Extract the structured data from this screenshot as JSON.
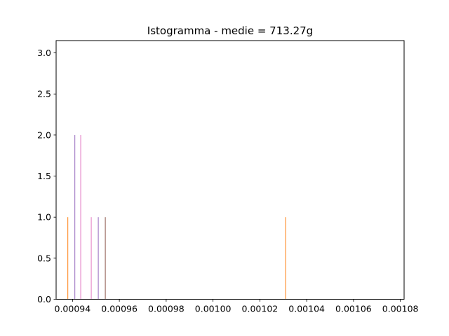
{
  "chart_data": {
    "type": "bar",
    "title": "Istogramma - medie = 713.27g",
    "xlabel": "",
    "ylabel": "",
    "xlim": [
      0.000933,
      0.0010816
    ],
    "ylim": [
      0,
      3.15
    ],
    "x_ticks": [
      0.00094,
      0.00096,
      0.00098,
      0.001,
      0.00102,
      0.00104,
      0.00106,
      0.00108
    ],
    "x_tick_labels": [
      "0.00094",
      "0.00096",
      "0.00098",
      "0.00100",
      "0.00102",
      "0.00104",
      "0.00106",
      "0.00108"
    ],
    "y_ticks": [
      0.0,
      0.5,
      1.0,
      1.5,
      2.0,
      2.5,
      3.0
    ],
    "y_tick_labels": [
      "0.0",
      "0.5",
      "1.0",
      "1.5",
      "2.0",
      "2.5",
      "3.0"
    ],
    "grid": false,
    "bar_width": 3e-07,
    "bars": [
      {
        "x": 0.000938,
        "value": 1,
        "color": "#ff7f0e"
      },
      {
        "x": 0.000941,
        "value": 2,
        "color": "#9467bd"
      },
      {
        "x": 0.0009435,
        "value": 2,
        "color": "#e377c2"
      },
      {
        "x": 0.000948,
        "value": 1,
        "color": "#e377c2"
      },
      {
        "x": 0.000951,
        "value": 1,
        "color": "#9467bd"
      },
      {
        "x": 0.000954,
        "value": 1,
        "color": "#8c564b"
      },
      {
        "x": 0.001031,
        "value": 1,
        "color": "#ff7f0e"
      }
    ]
  }
}
